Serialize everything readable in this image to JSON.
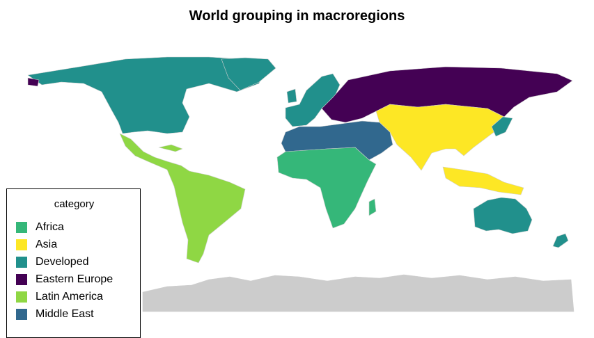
{
  "title": "World grouping in macroregions",
  "legend": {
    "title": "category",
    "items": [
      {
        "label": "Africa",
        "color": "#35b779"
      },
      {
        "label": "Asia",
        "color": "#fde725"
      },
      {
        "label": "Developed",
        "color": "#21908c"
      },
      {
        "label": "Eastern Europe",
        "color": "#440154"
      },
      {
        "label": "Latin America",
        "color": "#8fd744"
      },
      {
        "label": "Middle East",
        "color": "#31688e"
      }
    ]
  },
  "regions": [
    {
      "name": "antarctica",
      "category": "none",
      "color": "#cccccc"
    }
  ]
}
